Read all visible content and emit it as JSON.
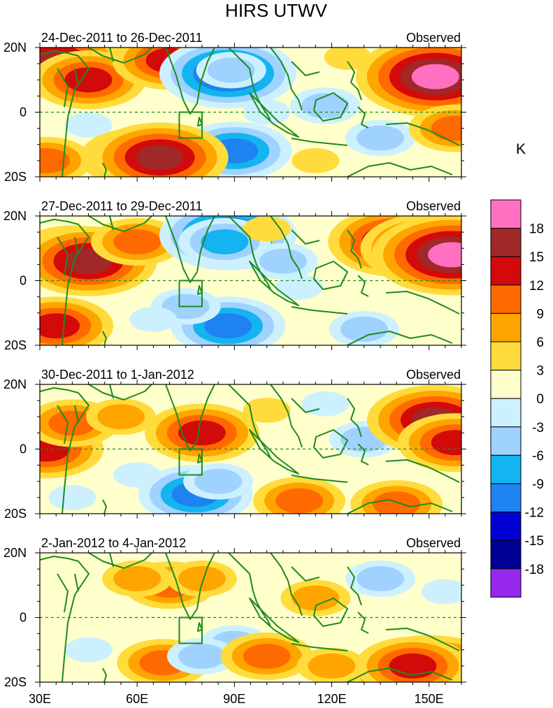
{
  "title": "HIRS UTWV",
  "colorbar": {
    "unit": "K",
    "labels": [
      "18",
      "15",
      "12",
      "9",
      "6",
      "3",
      "0",
      "-3",
      "-6",
      "-9",
      "-12",
      "-15",
      "-18"
    ],
    "colors": [
      "#ff70c0",
      "#a02828",
      "#d20a0a",
      "#ff6a00",
      "#ffa500",
      "#ffdc3c",
      "#ffffcc",
      "#cdf0ff",
      "#a0d2ff",
      "#14b4f0",
      "#1e82f0",
      "#0000d2",
      "#000096",
      "#9628f0"
    ]
  },
  "axes": {
    "lat_labels": [
      "20N",
      "0",
      "20S"
    ],
    "lon_labels": [
      "30E",
      "60E",
      "90E",
      "120E",
      "150E"
    ]
  },
  "panels": [
    {
      "date_range": "24-Dec-2011 to 26-Dec-2011",
      "tag": "Observed"
    },
    {
      "date_range": "27-Dec-2011 to 29-Dec-2011",
      "tag": "Observed"
    },
    {
      "date_range": "30-Dec-2011 to 1-Jan-2012",
      "tag": "Observed"
    },
    {
      "date_range": "2-Jan-2012 to 4-Jan-2012",
      "tag": "Observed"
    }
  ],
  "map_extent": {
    "lon_min": 30,
    "lon_max": 160,
    "lat_min": -20,
    "lat_max": 20
  },
  "region_box": {
    "lon_min": 73,
    "lon_max": 80,
    "lat_min": -8,
    "lat_max": 0
  },
  "anomaly_fields": [
    [
      {
        "lon": 35,
        "lat": 15,
        "level": 5
      },
      {
        "lon": 45,
        "lat": 10,
        "level": 4
      },
      {
        "lon": 70,
        "lat": 16,
        "level": 4
      },
      {
        "lon": 88,
        "lat": 12,
        "level": -5
      },
      {
        "lon": 89,
        "lat": 13,
        "level": -2
      },
      {
        "lon": 90,
        "lat": -12,
        "level": -4
      },
      {
        "lon": 45,
        "lat": -4,
        "level": -1
      },
      {
        "lon": 100,
        "lat": 0,
        "level": -1
      },
      {
        "lon": 118,
        "lat": 2,
        "level": -2
      },
      {
        "lon": 135,
        "lat": -8,
        "level": -2
      },
      {
        "lon": 150,
        "lat": 12,
        "level": 5
      },
      {
        "lon": 152,
        "lat": 11,
        "level": 6
      },
      {
        "lon": 60,
        "lat": -14,
        "level": 4
      },
      {
        "lon": 67,
        "lat": -14,
        "level": 5
      },
      {
        "lon": 158,
        "lat": -5,
        "level": 3
      },
      {
        "lon": 115,
        "lat": -15,
        "level": 1
      },
      {
        "lon": 32,
        "lat": -15,
        "level": 3
      },
      {
        "lon": 125,
        "lat": 17,
        "level": 1
      }
    ],
    [
      {
        "lon": 40,
        "lat": 8,
        "level": 4
      },
      {
        "lon": 45,
        "lat": 6,
        "level": 5
      },
      {
        "lon": 60,
        "lat": 12,
        "level": 3
      },
      {
        "lon": 88,
        "lat": 14,
        "level": -5
      },
      {
        "lon": 87,
        "lat": 12,
        "level": -3
      },
      {
        "lon": 88,
        "lat": -14,
        "level": -4
      },
      {
        "lon": 75,
        "lat": -8,
        "level": -2
      },
      {
        "lon": 105,
        "lat": 6,
        "level": -2
      },
      {
        "lon": 110,
        "lat": -2,
        "level": -1
      },
      {
        "lon": 140,
        "lat": 12,
        "level": 5
      },
      {
        "lon": 150,
        "lat": 10,
        "level": 5
      },
      {
        "lon": 157,
        "lat": 8,
        "level": 6
      },
      {
        "lon": 35,
        "lat": -14,
        "level": 4
      },
      {
        "lon": 65,
        "lat": -12,
        "level": -1
      },
      {
        "lon": 130,
        "lat": -15,
        "level": -2
      },
      {
        "lon": 100,
        "lat": 16,
        "level": 1
      }
    ],
    [
      {
        "lon": 32,
        "lat": 0,
        "level": 4
      },
      {
        "lon": 40,
        "lat": 8,
        "level": 3
      },
      {
        "lon": 55,
        "lat": 10,
        "level": 2
      },
      {
        "lon": 80,
        "lat": 5,
        "level": 4
      },
      {
        "lon": 78,
        "lat": -14,
        "level": -4
      },
      {
        "lon": 85,
        "lat": -10,
        "level": -2
      },
      {
        "lon": 130,
        "lat": 3,
        "level": -2
      },
      {
        "lon": 118,
        "lat": 14,
        "level": -1
      },
      {
        "lon": 152,
        "lat": 9,
        "level": 5
      },
      {
        "lon": 158,
        "lat": 2,
        "level": 4
      },
      {
        "lon": 140,
        "lat": -17,
        "level": 3
      },
      {
        "lon": 110,
        "lat": -16,
        "level": 3
      },
      {
        "lon": 40,
        "lat": -15,
        "level": -1
      },
      {
        "lon": 60,
        "lat": -8,
        "level": -1
      },
      {
        "lon": 100,
        "lat": 12,
        "level": 1
      }
    ],
    [
      {
        "lon": 70,
        "lat": 10,
        "level": 3
      },
      {
        "lon": 60,
        "lat": 12,
        "level": 2
      },
      {
        "lon": 80,
        "lat": 12,
        "level": 2
      },
      {
        "lon": 68,
        "lat": -14,
        "level": 3
      },
      {
        "lon": 90,
        "lat": -8,
        "level": -2
      },
      {
        "lon": 80,
        "lat": -12,
        "level": -2
      },
      {
        "lon": 135,
        "lat": 12,
        "level": -2
      },
      {
        "lon": 150,
        "lat": -18,
        "level": 6
      },
      {
        "lon": 145,
        "lat": -15,
        "level": 4
      },
      {
        "lon": 115,
        "lat": 6,
        "level": 2
      },
      {
        "lon": 100,
        "lat": -12,
        "level": 3
      },
      {
        "lon": 45,
        "lat": -10,
        "level": -1
      },
      {
        "lon": 155,
        "lat": 8,
        "level": -1
      },
      {
        "lon": 120,
        "lat": -15,
        "level": 2
      }
    ]
  ]
}
